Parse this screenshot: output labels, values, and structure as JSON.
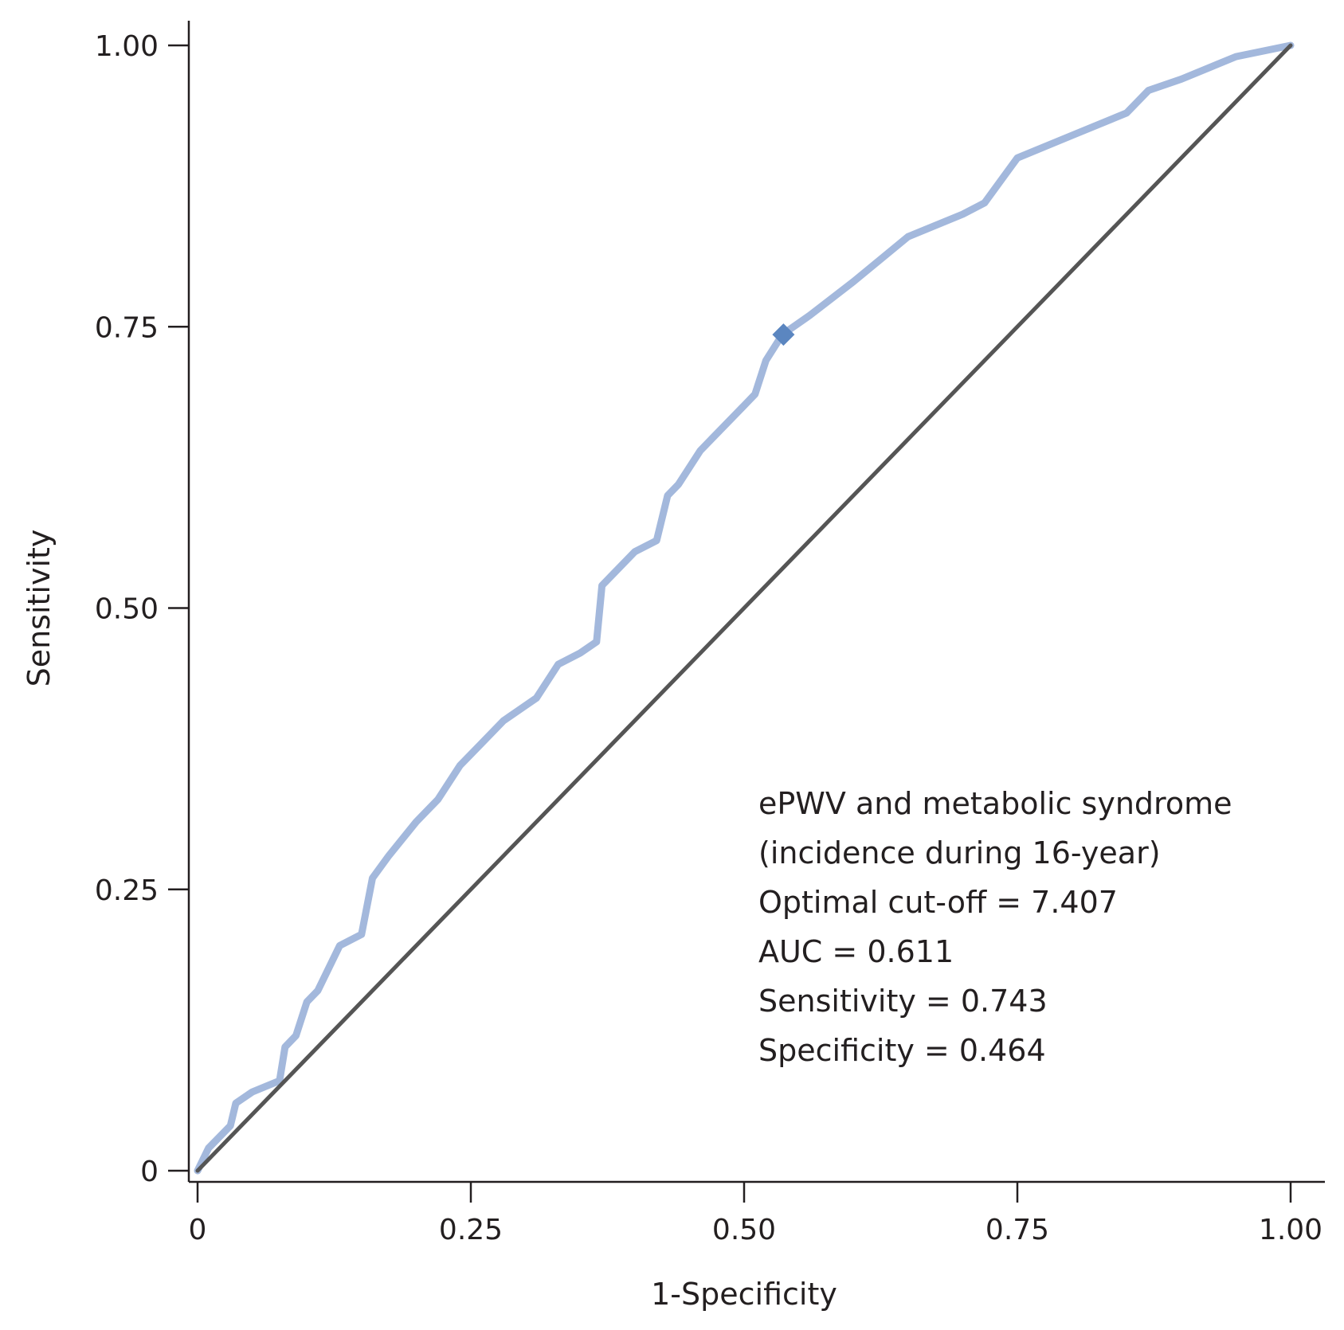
{
  "chart_data": {
    "type": "line",
    "xlabel": "1-Specificity",
    "ylabel": "Sensitivity",
    "xlim": [
      0,
      1
    ],
    "ylim": [
      0,
      1
    ],
    "x_ticks": [
      0,
      0.25,
      0.5,
      0.75,
      1.0
    ],
    "x_tick_labels": [
      "0",
      "0.25",
      "0.50",
      "0.75",
      "1.00"
    ],
    "y_ticks": [
      0,
      0.25,
      0.5,
      0.75,
      1.0
    ],
    "y_tick_labels": [
      "0",
      "0.25",
      "0.50",
      "0.75",
      "1.00"
    ],
    "grid": false,
    "series": [
      {
        "color": "#a3b8dc",
        "x": [
          0,
          0.01,
          0.03,
          0.035,
          0.05,
          0.075,
          0.08,
          0.09,
          0.1,
          0.11,
          0.13,
          0.15,
          0.16,
          0.175,
          0.2,
          0.22,
          0.24,
          0.26,
          0.28,
          0.31,
          0.33,
          0.35,
          0.365,
          0.37,
          0.4,
          0.42,
          0.43,
          0.44,
          0.46,
          0.5,
          0.51,
          0.52,
          0.535,
          0.56,
          0.6,
          0.65,
          0.7,
          0.72,
          0.75,
          0.8,
          0.85,
          0.87,
          0.9,
          0.95,
          1.0
        ],
        "y": [
          0,
          0.02,
          0.04,
          0.06,
          0.07,
          0.08,
          0.11,
          0.12,
          0.15,
          0.16,
          0.2,
          0.21,
          0.26,
          0.28,
          0.31,
          0.33,
          0.36,
          0.38,
          0.4,
          0.42,
          0.45,
          0.46,
          0.47,
          0.52,
          0.55,
          0.56,
          0.6,
          0.61,
          0.64,
          0.68,
          0.69,
          0.72,
          0.743,
          0.76,
          0.79,
          0.83,
          0.85,
          0.86,
          0.9,
          0.92,
          0.94,
          0.96,
          0.97,
          0.99,
          1.0
        ]
      },
      {
        "color": "#555555",
        "x": [
          0,
          1
        ],
        "y": [
          0,
          1
        ]
      }
    ],
    "optimal_point": {
      "x": 0.536,
      "y": 0.743,
      "color": "#5b86c0"
    },
    "annotations": [
      "ePWV and metabolic syndrome",
      "(incidence during 16-year)",
      "Optimal cut-off = 7.407",
      "AUC = 0.611",
      "Sensitivity = 0.743",
      "Specificity = 0.464"
    ]
  }
}
